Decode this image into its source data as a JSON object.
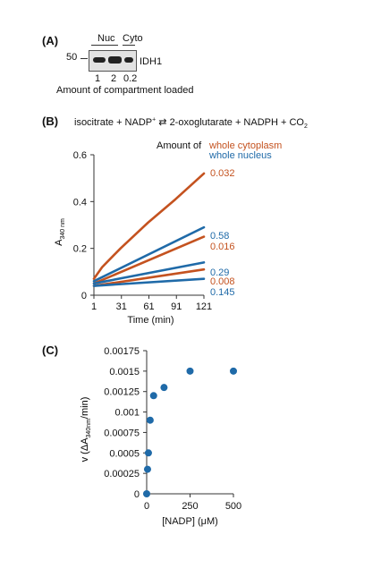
{
  "panel_a": {
    "label": "(A)",
    "lane_group_nuc": "Nuc",
    "lane_group_cyto": "Cyto",
    "marker": "50",
    "protein": "IDH1",
    "lanes": [
      "1",
      "2",
      "0.2"
    ],
    "lane_intensity": [
      0.55,
      1.0,
      0.45
    ],
    "footer": "Amount of compartment loaded"
  },
  "panel_b": {
    "label": "(B)",
    "equation": {
      "part1": "isocitrate + NADP",
      "sup_plus": "+",
      "arrow": "⇄",
      "part2": "2-oxoglutarate + NADPH + CO",
      "sub_2": "2"
    },
    "legend_heading": "Amount of",
    "legend_cyto": "whole cytoplasm",
    "legend_nuc": "whole nucleus",
    "colors": {
      "cytoplasm": "#c4521f",
      "nucleus": "#1f6aa8"
    }
  },
  "panel_c": {
    "label": "(C)",
    "point_color": "#1f6aa8"
  },
  "chart_data": [
    {
      "type": "line",
      "title": "",
      "ylabel_main": "A",
      "ylabel_sub": "340 nm",
      "xlabel": "Time (min)",
      "xlim": [
        1,
        121
      ],
      "ylim": [
        0,
        0.6
      ],
      "xticks": [
        "1",
        "31",
        "61",
        "91",
        "121"
      ],
      "yticks": [
        "0",
        "0.2",
        "0.4",
        "0.6"
      ],
      "x": [
        1,
        121
      ],
      "series": [
        {
          "name": "0.032",
          "group": "cytoplasm",
          "x": [
            1,
            10,
            30,
            60,
            90,
            121
          ],
          "values": [
            0.07,
            0.12,
            0.2,
            0.31,
            0.41,
            0.52
          ]
        },
        {
          "name": "0.58",
          "group": "nucleus",
          "values": [
            0.06,
            0.29
          ]
        },
        {
          "name": "0.016",
          "group": "cytoplasm",
          "values": [
            0.05,
            0.25
          ]
        },
        {
          "name": "0.29",
          "group": "nucleus",
          "values": [
            0.05,
            0.14
          ]
        },
        {
          "name": "0.008",
          "group": "cytoplasm",
          "values": [
            0.04,
            0.11
          ]
        },
        {
          "name": "0.145",
          "group": "nucleus",
          "values": [
            0.04,
            0.07
          ]
        }
      ],
      "labels": [
        "0.032",
        "0.58",
        "0.016",
        "0.29",
        "0.008",
        "0.145"
      ]
    },
    {
      "type": "scatter",
      "title": "",
      "ylabel_prefix": "v (ΔA",
      "ylabel_sub": "340nm",
      "ylabel_suffix": "/min)",
      "xlabel": "[NADP] (μM)",
      "xlim": [
        0,
        500
      ],
      "ylim": [
        0,
        0.00175
      ],
      "xticks": [
        "0",
        "250",
        "500"
      ],
      "yticks": [
        "0",
        "0.00025",
        "0.0005",
        "0.00075",
        "0.001",
        "0.00125",
        "0.0015",
        "0.00175"
      ],
      "x": [
        0,
        5,
        10,
        20,
        40,
        100,
        250,
        500
      ],
      "values": [
        0.0,
        0.0003,
        0.0005,
        0.0009,
        0.0012,
        0.0013,
        0.0015,
        0.0015
      ]
    }
  ]
}
